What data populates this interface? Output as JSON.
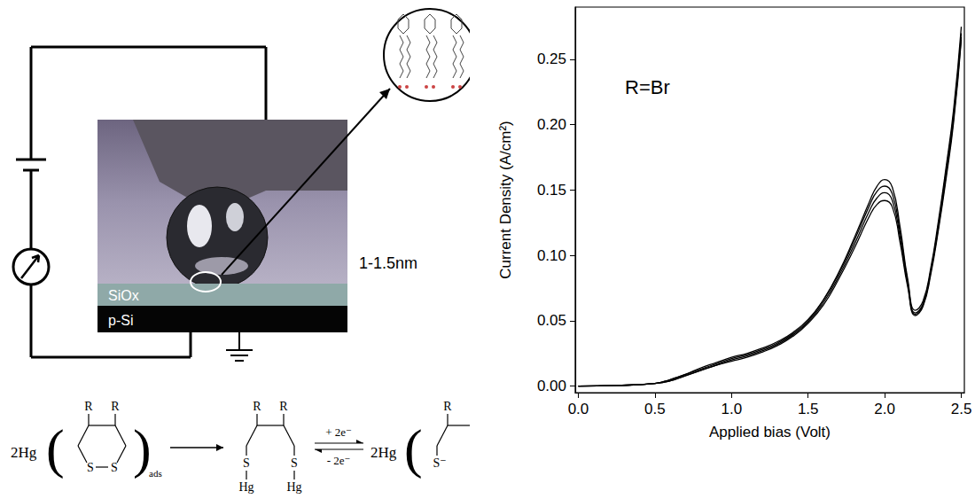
{
  "chart_data": {
    "type": "line",
    "annotation": "R=Br",
    "x_label": "Applied bias (Volt)",
    "y_label": "Current Density (A/cm²)",
    "x": [
      0,
      0.25,
      0.5,
      0.6,
      0.7,
      0.8,
      0.9,
      1.0,
      1.1,
      1.2,
      1.3,
      1.4,
      1.5,
      1.6,
      1.7,
      1.8,
      1.9,
      1.95,
      2.0,
      2.05,
      2.1,
      2.15,
      2.2,
      2.25,
      2.3,
      2.35,
      2.4,
      2.45,
      2.5
    ],
    "series": [
      {
        "color": "#000000",
        "values": [
          0,
          0.0005,
          0.002,
          0.005,
          0.009,
          0.013,
          0.017,
          0.021,
          0.024,
          0.028,
          0.033,
          0.04,
          0.05,
          0.066,
          0.087,
          0.113,
          0.141,
          0.153,
          0.158,
          0.152,
          0.122,
          0.082,
          0.058,
          0.065,
          0.09,
          0.126,
          0.167,
          0.212,
          0.275
        ]
      },
      {
        "color": "#000000",
        "values": [
          0,
          0.0005,
          0.002,
          0.005,
          0.009,
          0.014,
          0.018,
          0.022,
          0.025,
          0.029,
          0.034,
          0.041,
          0.051,
          0.066,
          0.086,
          0.111,
          0.138,
          0.149,
          0.153,
          0.147,
          0.118,
          0.08,
          0.056,
          0.063,
          0.088,
          0.123,
          0.164,
          0.208,
          0.27
        ]
      },
      {
        "color": "#000000",
        "values": [
          0,
          0.0005,
          0.002,
          0.004,
          0.008,
          0.012,
          0.016,
          0.02,
          0.023,
          0.027,
          0.032,
          0.039,
          0.049,
          0.064,
          0.084,
          0.108,
          0.134,
          0.144,
          0.148,
          0.142,
          0.114,
          0.078,
          0.055,
          0.062,
          0.087,
          0.121,
          0.161,
          0.205,
          0.267
        ]
      },
      {
        "color": "#000000",
        "values": [
          0,
          0.0005,
          0.002,
          0.004,
          0.008,
          0.012,
          0.016,
          0.019,
          0.022,
          0.026,
          0.031,
          0.038,
          0.048,
          0.062,
          0.082,
          0.105,
          0.13,
          0.139,
          0.142,
          0.137,
          0.11,
          0.076,
          0.054,
          0.061,
          0.085,
          0.119,
          0.158,
          0.202,
          0.265
        ]
      }
    ],
    "line_style": "solid",
    "xlim": [
      -0.02,
      2.52
    ],
    "xticks": [
      {
        "value": 0,
        "label": "0.0"
      },
      0.5,
      {
        "value": 1,
        "label": "1.0"
      },
      1.5,
      {
        "value": 2,
        "label": "2.0"
      },
      2.5
    ],
    "ylim": [
      -0.005,
      0.29
    ],
    "yticks": [
      {
        "value": 0,
        "label": "0.00"
      },
      0.05,
      {
        "value": 0.1,
        "label": "0.10"
      },
      0.15,
      {
        "value": 0.2,
        "label": "0.20"
      },
      0.25
    ],
    "grid": false
  },
  "diagram": {
    "layers": {
      "oxide": "SiOx",
      "substrate": "p-Si"
    },
    "thickness": "1-1.5nm",
    "scheme": {
      "prefix": "2Hg",
      "substituent": "R",
      "sulfur": "S",
      "adsorbed": "ads",
      "mercury": "Hg",
      "forward": "+ 2e⁻",
      "backward": "- 2e⁻",
      "thiolate": "S⁻"
    }
  }
}
